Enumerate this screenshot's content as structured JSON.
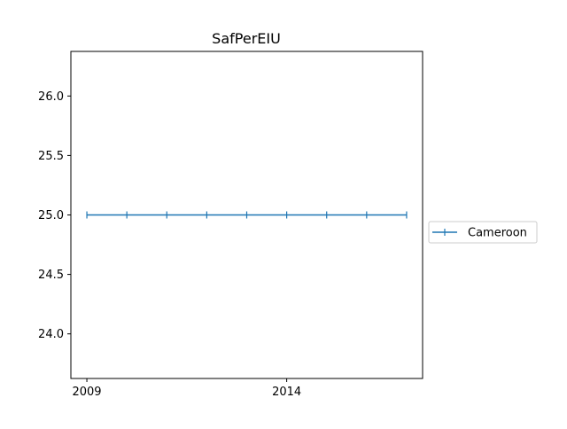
{
  "chart_data": {
    "type": "line",
    "title": "SafPerEIU",
    "xlabel": "",
    "ylabel": "",
    "x": [
      2009,
      2010,
      2011,
      2012,
      2013,
      2014,
      2015,
      2016,
      2017
    ],
    "series": [
      {
        "name": "Cameroon",
        "values": [
          25.0,
          25.0,
          25.0,
          25.0,
          25.0,
          25.0,
          25.0,
          25.0,
          25.0
        ],
        "color": "#1f77b4",
        "marker": "vertical-line"
      }
    ],
    "xlim": [
      2008.6,
      2017.4
    ],
    "ylim": [
      23.625,
      26.375
    ],
    "x_ticks": [
      2009,
      2014
    ],
    "x_tick_labels": [
      "2009",
      "2014"
    ],
    "y_ticks": [
      24.0,
      24.5,
      25.0,
      25.5,
      26.0
    ],
    "y_tick_labels": [
      "24.0",
      "24.5",
      "25.0",
      "25.5",
      "26.0"
    ],
    "grid": false,
    "legend_position": "center-right-outside"
  }
}
